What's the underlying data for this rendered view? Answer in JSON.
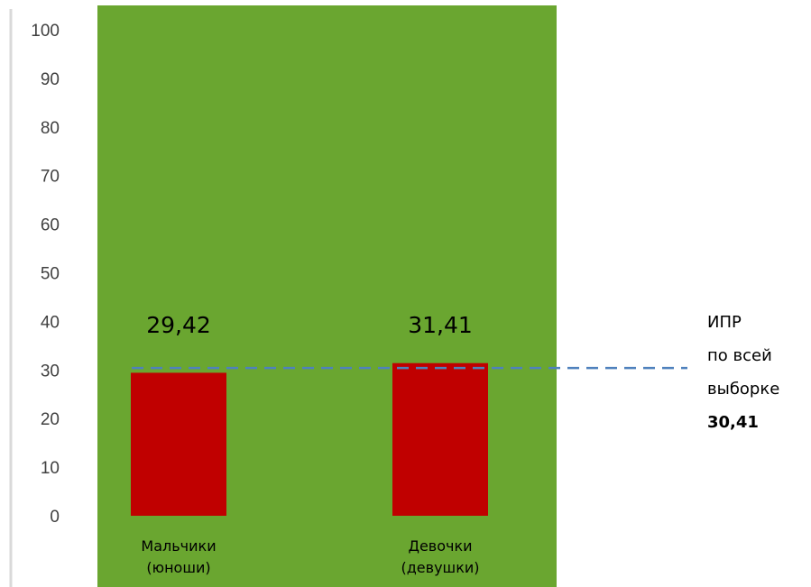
{
  "chart_data": {
    "type": "bar",
    "categories": [
      [
        "Мальчики",
        "(юноши)"
      ],
      [
        "Девочки",
        "(девушки)"
      ]
    ],
    "values": [
      29.42,
      31.41
    ],
    "data_labels": [
      "29,42",
      "31,41"
    ],
    "y_ticks": [
      "0",
      "10",
      "20",
      "30",
      "40",
      "50",
      "60",
      "70",
      "80",
      "90",
      "100"
    ],
    "ylim": [
      0,
      100
    ],
    "reference_line": {
      "value": 30.41,
      "label_lines": [
        "ИПР",
        "по всей",
        "выборке"
      ],
      "value_label": "30,41",
      "style": "dashed",
      "color": "#4f81bd"
    },
    "grid": false,
    "colors": {
      "plot_background": "#6aa630",
      "bar": "#c00000",
      "axis": "#d9d9d9"
    }
  }
}
